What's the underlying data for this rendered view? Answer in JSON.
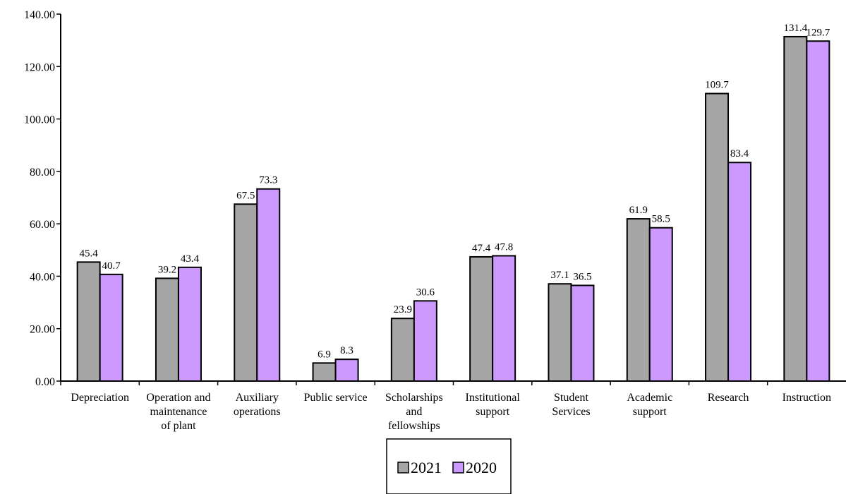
{
  "chart_data": {
    "type": "bar",
    "categories": [
      [
        "Depreciation"
      ],
      [
        "Operation and",
        "maintenance",
        "of plant"
      ],
      [
        "Auxiliary",
        "operations"
      ],
      [
        "Public service"
      ],
      [
        "Scholarships",
        "and",
        "fellowships"
      ],
      [
        "Institutional",
        "support"
      ],
      [
        "Student",
        "Services"
      ],
      [
        "Academic",
        "support"
      ],
      [
        "Research"
      ],
      [
        "Instruction"
      ]
    ],
    "series": [
      {
        "name": "2021",
        "color": "#a6a6a6",
        "values": [
          45.4,
          39.2,
          67.5,
          6.9,
          23.9,
          47.4,
          37.1,
          61.9,
          109.7,
          131.4
        ],
        "labels": [
          "45.4",
          "39.2",
          "67.5",
          "6.9",
          "23.9",
          "47.4",
          "37.1",
          "61.9",
          "109.7",
          "131.4"
        ]
      },
      {
        "name": "2020",
        "color": "#cc99ff",
        "values": [
          40.7,
          43.4,
          73.3,
          8.3,
          30.6,
          47.8,
          36.5,
          58.5,
          83.4,
          129.7
        ],
        "labels": [
          "40.7",
          "43.4",
          "73.3",
          "8.3",
          "30.6",
          "47.8",
          "36.5",
          "58.5",
          "83.4",
          "129.7"
        ]
      }
    ],
    "ylim": [
      0,
      140
    ],
    "yticks": [
      "0.00",
      "20.00",
      "40.00",
      "60.00",
      "80.00",
      "100.00",
      "120.00",
      "140.00"
    ],
    "ytick_values": [
      0,
      20,
      40,
      60,
      80,
      100,
      120,
      140
    ],
    "grid": false,
    "legend_position": "bottom",
    "title": "",
    "xlabel": "",
    "ylabel": ""
  }
}
